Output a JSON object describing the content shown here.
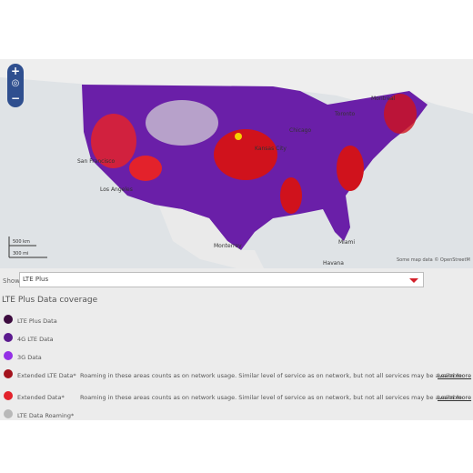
{
  "map": {
    "controls": {
      "zoom_in": "+",
      "zoom_out": "−"
    },
    "labels": [
      "Montreal",
      "Toronto",
      "Chicago",
      "Kansas City",
      "San Francisco",
      "Los Angeles",
      "Monterrey",
      "Miami",
      "Havana"
    ],
    "scale": {
      "km": "500 km",
      "mi": "300 mi"
    },
    "attribution": "Some map data © OpenStreetM"
  },
  "filter": {
    "label": "Show:",
    "selected": "LTE Plus"
  },
  "legend": {
    "title": "LTE Plus Data coverage",
    "items": [
      {
        "label": "LTE Plus Data",
        "color": "#3d0c3f"
      },
      {
        "label": "4G LTE Data",
        "color": "#5b1a8e"
      },
      {
        "label": "3G Data",
        "color": "#9430e6"
      },
      {
        "label": "Extended LTE Data*",
        "color": "#a3121c",
        "note": "Roaming in these areas counts as on network usage. Similar level of service as on network, but not all services may be available.",
        "link": "Learn more"
      },
      {
        "label": "Extended Data*",
        "color": "#e3222b",
        "note": "Roaming in these areas counts as on network usage. Similar level of service as on network, but not all services may be available.",
        "link": "Learn more"
      },
      {
        "label": "LTE Data Roaming*",
        "color": "#b8b8b8"
      }
    ]
  }
}
